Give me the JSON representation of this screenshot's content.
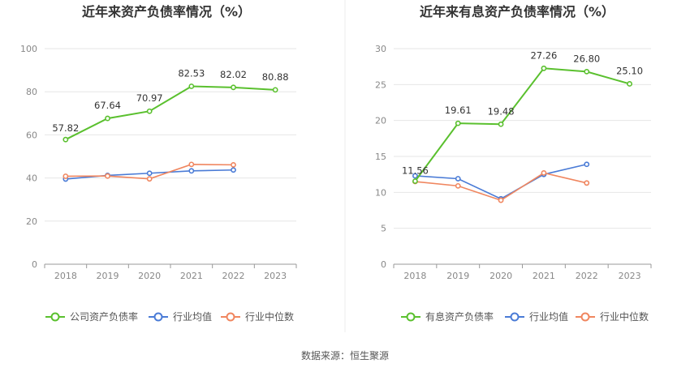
{
  "source_text": "数据来源：恒生聚源",
  "chart_data": [
    {
      "type": "line",
      "title": "近年来资产负债率情况（%）",
      "categories": [
        "2018",
        "2019",
        "2020",
        "2021",
        "2022",
        "2023"
      ],
      "ylim": [
        0,
        100
      ],
      "yticks": [
        0,
        20,
        40,
        60,
        80,
        100
      ],
      "grid": true,
      "legend_position": "bottom",
      "series": [
        {
          "name": "公司资产负债率",
          "color": "#5ac02e",
          "values": [
            57.82,
            67.64,
            70.97,
            82.53,
            82.02,
            80.88
          ],
          "labels": [
            "57.82",
            "67.64",
            "70.97",
            "82.53",
            "82.02",
            "80.88"
          ]
        },
        {
          "name": "行业均值",
          "color": "#4a7bd6",
          "values": [
            39.5,
            41.2,
            42.2,
            43.3,
            43.7,
            null
          ]
        },
        {
          "name": "行业中位数",
          "color": "#f0865f",
          "values": [
            40.8,
            40.9,
            39.6,
            46.3,
            46.1,
            null
          ]
        }
      ]
    },
    {
      "type": "line",
      "title": "近年来有息资产负债率情况（%）",
      "categories": [
        "2018",
        "2019",
        "2020",
        "2021",
        "2022",
        "2023"
      ],
      "ylim": [
        0,
        30
      ],
      "yticks": [
        0,
        5,
        10,
        15,
        20,
        25,
        30
      ],
      "grid": true,
      "legend_position": "bottom",
      "series": [
        {
          "name": "有息资产负债率",
          "color": "#5ac02e",
          "values": [
            11.56,
            19.61,
            19.48,
            27.26,
            26.8,
            25.1
          ],
          "labels": [
            "11.56",
            "19.61",
            "19.48",
            "27.26",
            "26.80",
            "25.10"
          ]
        },
        {
          "name": "行业均值",
          "color": "#4a7bd6",
          "values": [
            12.3,
            11.9,
            9.1,
            12.5,
            13.9,
            null
          ]
        },
        {
          "name": "行业中位数",
          "color": "#f0865f",
          "values": [
            11.5,
            10.9,
            8.9,
            12.7,
            11.3,
            null
          ]
        }
      ]
    }
  ]
}
